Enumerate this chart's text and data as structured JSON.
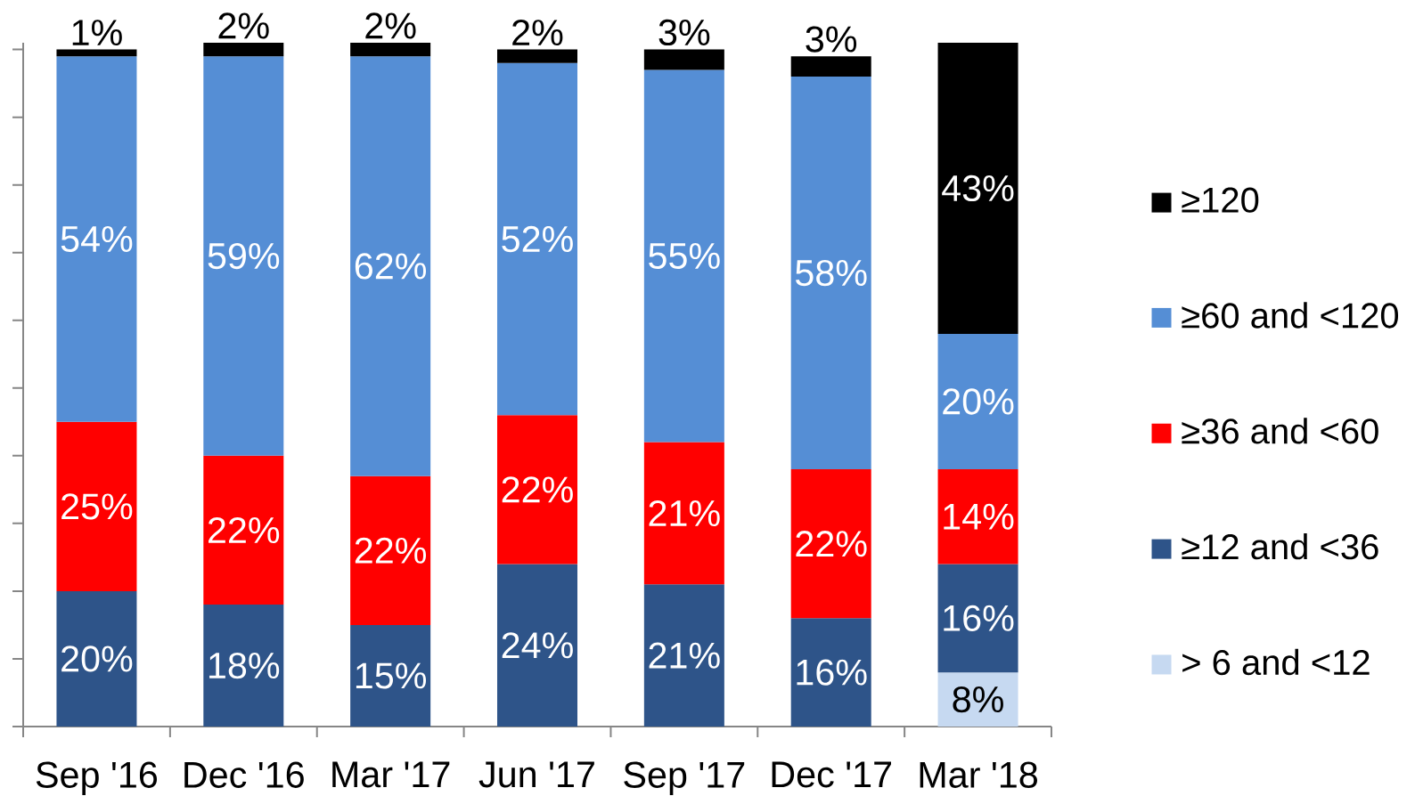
{
  "chart_data": {
    "type": "bar",
    "stacked": true,
    "categories": [
      "Sep '16",
      "Dec '16",
      "Mar '17",
      "Jun '17",
      "Sep '17",
      "Dec '17",
      "Mar '18"
    ],
    "series": [
      {
        "name": "> 6 and <12",
        "color": "#c6d9f1",
        "values": [
          null,
          null,
          null,
          null,
          null,
          null,
          8
        ],
        "value_labels": [
          null,
          null,
          null,
          null,
          null,
          null,
          "8%"
        ]
      },
      {
        "name": "≥12 and <36",
        "color": "#2e5489",
        "values": [
          20,
          18,
          15,
          24,
          21,
          16,
          16
        ],
        "value_labels": [
          "20%",
          "18%",
          "15%",
          "24%",
          "21%",
          "16%",
          "16%"
        ]
      },
      {
        "name": "≥36 and <60",
        "color": "#ff0000",
        "values": [
          25,
          22,
          22,
          22,
          21,
          22,
          14
        ],
        "value_labels": [
          "25%",
          "22%",
          "22%",
          "22%",
          "21%",
          "22%",
          "14%"
        ]
      },
      {
        "name": "≥60 and <120",
        "color": "#558ed5",
        "values": [
          54,
          59,
          62,
          52,
          55,
          58,
          20
        ],
        "value_labels": [
          "54%",
          "59%",
          "62%",
          "52%",
          "55%",
          "58%",
          "20%"
        ]
      },
      {
        "name": "≥120",
        "color": "#000000",
        "values": [
          1,
          2,
          2,
          2,
          3,
          3,
          43
        ],
        "value_labels": [
          "1%",
          "2%",
          "2%",
          "2%",
          "3%",
          "3%",
          "43%"
        ]
      }
    ],
    "ylim": [
      0,
      101
    ],
    "yticks": [
      {
        "value": 0,
        "label": null
      },
      {
        "value": 10,
        "label": null
      },
      {
        "value": 20,
        "label": null
      },
      {
        "value": 30,
        "label": null
      },
      {
        "value": 40,
        "label": null
      },
      {
        "value": 50,
        "label": null
      },
      {
        "value": 60,
        "label": null
      },
      {
        "value": 70,
        "label": null
      },
      {
        "value": 80,
        "label": null
      },
      {
        "value": 90,
        "label": null
      },
      {
        "value": 100,
        "label": null
      }
    ],
    "tick_labels": "x",
    "legend": "right"
  }
}
